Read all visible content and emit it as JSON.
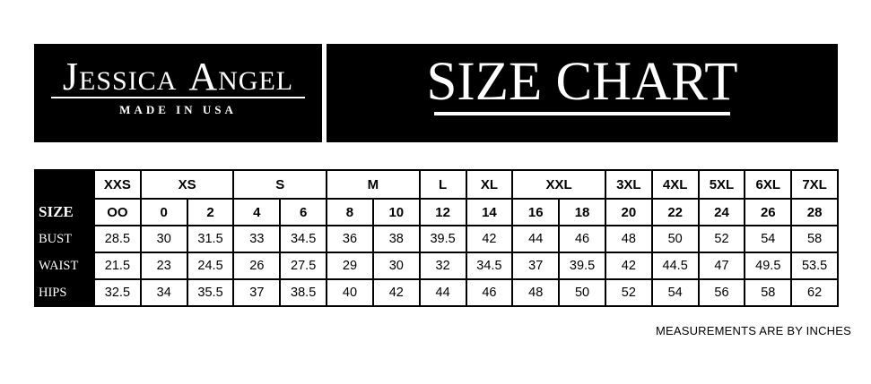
{
  "brand": {
    "name": "JESSICA ANGEL",
    "name_parts": [
      {
        "initial": "J",
        "rest": "ESSICA"
      },
      {
        "initial": "A",
        "rest": "NGEL"
      }
    ],
    "tagline": "MADE IN USA"
  },
  "header": {
    "title": "SIZE CHART"
  },
  "chart_data": {
    "type": "table",
    "title": "SIZE CHART",
    "size_groups": [
      {
        "label": "XXS",
        "span": 1
      },
      {
        "label": "XS",
        "span": 2
      },
      {
        "label": "S",
        "span": 2
      },
      {
        "label": "M",
        "span": 2
      },
      {
        "label": "L",
        "span": 1
      },
      {
        "label": "XL",
        "span": 1
      },
      {
        "label": "XXL",
        "span": 2
      },
      {
        "label": "3XL",
        "span": 1
      },
      {
        "label": "4XL",
        "span": 1
      },
      {
        "label": "5XL",
        "span": 1
      },
      {
        "label": "6XL",
        "span": 1
      },
      {
        "label": "7XL",
        "span": 1
      }
    ],
    "rows": [
      {
        "label": "SIZE",
        "values": [
          "OO",
          "0",
          "2",
          "4",
          "6",
          "8",
          "10",
          "12",
          "14",
          "16",
          "18",
          "20",
          "22",
          "24",
          "26",
          "28"
        ]
      },
      {
        "label": "BUST",
        "values": [
          28.5,
          30,
          31.5,
          33,
          34.5,
          36,
          38,
          39.5,
          42,
          44,
          46,
          48,
          50,
          52,
          54,
          58
        ]
      },
      {
        "label": "WAIST",
        "values": [
          21.5,
          23,
          24.5,
          26,
          27.5,
          29,
          30,
          32,
          34.5,
          37,
          39.5,
          42,
          44.5,
          47,
          49.5,
          53.5
        ]
      },
      {
        "label": "HIPS",
        "values": [
          32.5,
          34,
          35.5,
          37,
          38.5,
          40,
          42,
          44,
          46,
          48,
          50,
          52,
          54,
          56,
          58,
          62
        ]
      }
    ],
    "units_note": "MEASUREMENTS ARE BY INCHES"
  },
  "footnote": "MEASUREMENTS ARE BY INCHES",
  "colors": {
    "panel_bg": "#000000",
    "panel_text": "#ffffff",
    "table_border": "#000000",
    "page_bg": "#ffffff",
    "table_text": "#000000"
  }
}
